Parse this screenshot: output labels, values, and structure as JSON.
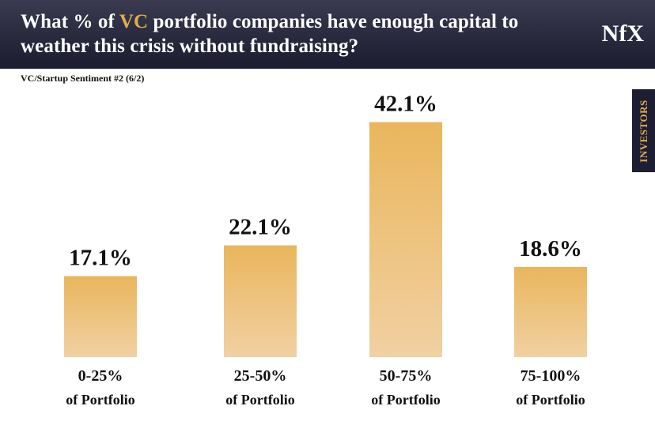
{
  "header": {
    "title_pre": "What % of ",
    "title_highlight": "VC",
    "title_post": " portfolio companies have enough capital to weather this crisis without fundraising?",
    "logo": "NfX",
    "highlight_color": "#e2ab4e"
  },
  "subtitle": "VC/Startup Sentiment #2 (6/2)",
  "side_tab": "INVESTORS",
  "chart_data": {
    "type": "bar",
    "title": "What % of VC portfolio companies have enough capital to weather this crisis without fundraising?",
    "categories": [
      [
        "0-25%",
        "of Portfolio"
      ],
      [
        "25-50%",
        "of Portfolio"
      ],
      [
        "50-75%",
        "of Portfolio"
      ],
      [
        "75-100%",
        "of Portfolio"
      ]
    ],
    "values": [
      17.1,
      22.1,
      42.1,
      18.6
    ],
    "data_labels": [
      "17.1%",
      "22.1%",
      "42.1%",
      "18.6%"
    ],
    "bar_color_top": "#e9b65c",
    "bar_color_bottom": "#f1d0a2",
    "grid": false
  }
}
